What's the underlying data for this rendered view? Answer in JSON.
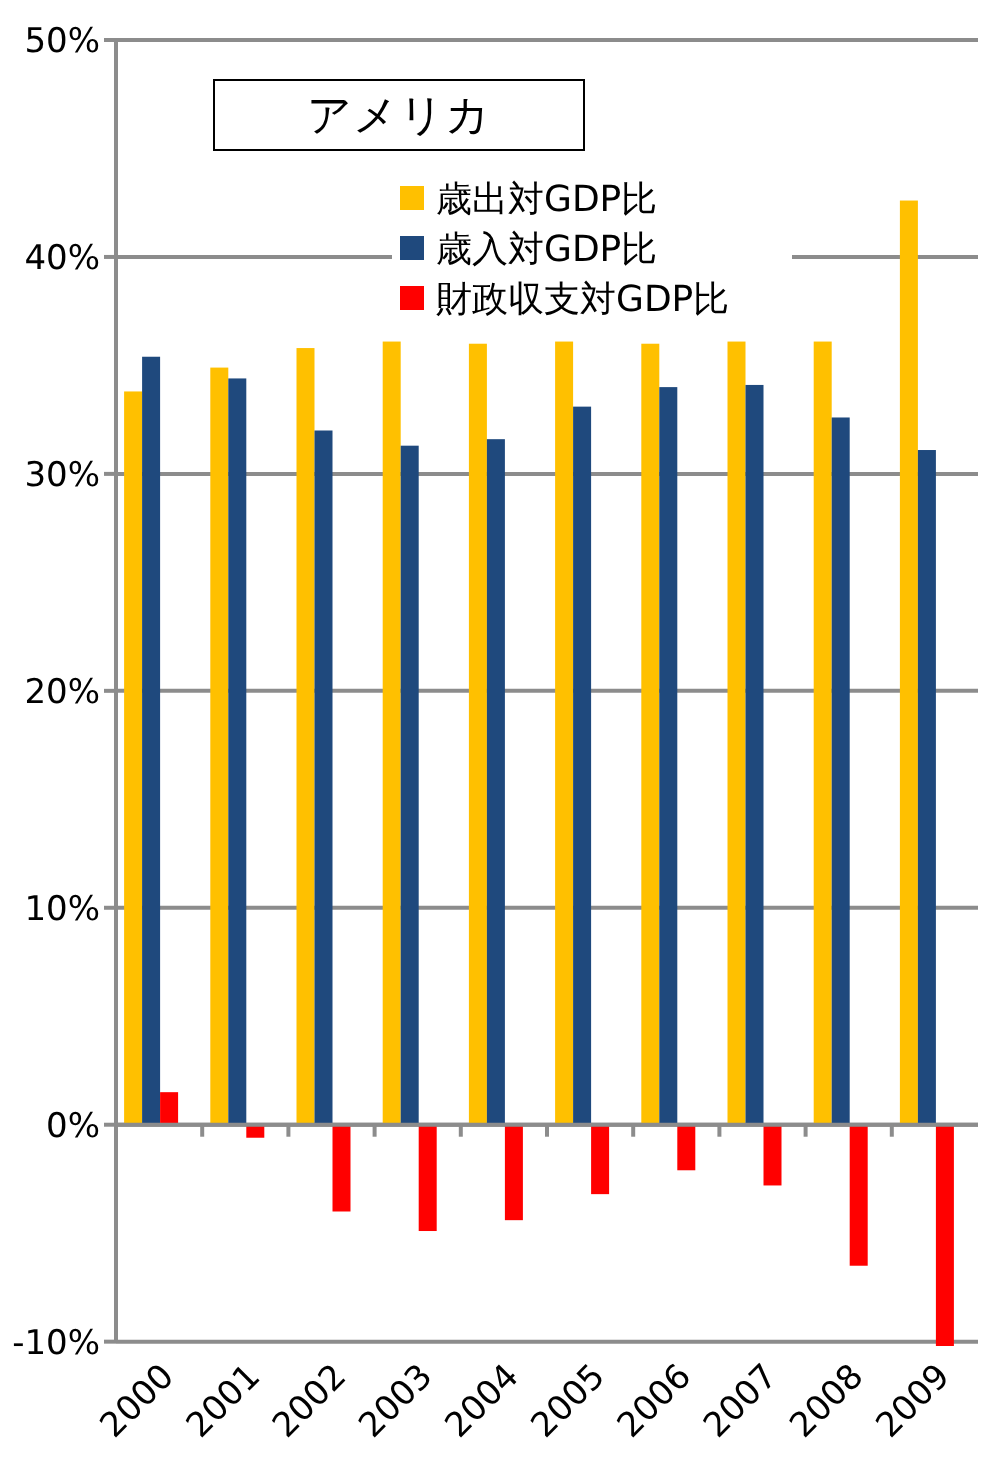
{
  "chart_data": {
    "type": "bar",
    "title": "アメリカ",
    "categories": [
      "2000",
      "2001",
      "2002",
      "2003",
      "2004",
      "2005",
      "2006",
      "2007",
      "2008",
      "2009"
    ],
    "series": [
      {
        "name": "歳出対GDP比",
        "color": "#ffc000",
        "values": [
          33.8,
          34.9,
          35.8,
          36.1,
          36.0,
          36.1,
          36.0,
          36.1,
          36.1,
          42.6
        ]
      },
      {
        "name": "歳入対GDP比",
        "color": "#1f497d",
        "values": [
          35.4,
          34.4,
          32.0,
          31.3,
          31.6,
          33.1,
          34.0,
          34.1,
          32.6,
          31.1
        ]
      },
      {
        "name": "財政収支対GDP比",
        "color": "#ff0000",
        "values": [
          1.5,
          -0.6,
          -4.0,
          -4.9,
          -4.4,
          -3.2,
          -2.1,
          -2.8,
          -6.5,
          -10.2
        ]
      }
    ],
    "ylim": [
      -10.2,
      50
    ],
    "yticks": [
      {
        "value": -10,
        "label": "-10%"
      },
      {
        "value": 0,
        "label": "0%"
      },
      {
        "value": 10,
        "label": "10%"
      },
      {
        "value": 20,
        "label": "20%"
      },
      {
        "value": 30,
        "label": "30%"
      },
      {
        "value": 40,
        "label": "40%"
      },
      {
        "value": 50,
        "label": "50%"
      }
    ],
    "grid": "y",
    "legend": "top"
  }
}
